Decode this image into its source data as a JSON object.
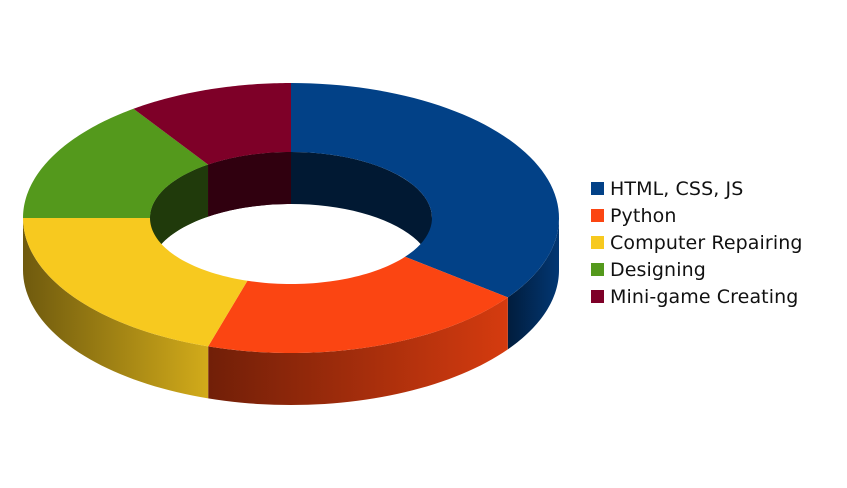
{
  "chart_data": {
    "type": "pie",
    "style": "3d-donut",
    "legend_position": "right",
    "categories": [
      "HTML, CSS, JS",
      "Python",
      "Computer Repairing",
      "Designing",
      "Mini-game Creating"
    ],
    "values": [
      35,
      20,
      20,
      15,
      10
    ],
    "colors": [
      "#024187",
      "#fb4512",
      "#f7c91f",
      "#54991c",
      "#7e0028"
    ]
  }
}
